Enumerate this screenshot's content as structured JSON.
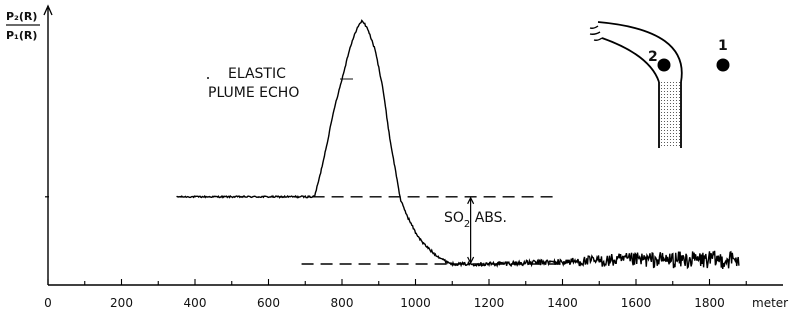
{
  "chart_data": {
    "type": "line",
    "xlabel": "meter",
    "ylabel": {
      "numerator": "P₂(R)",
      "denominator": "P₁(R)"
    },
    "xlim": [
      0,
      2000
    ],
    "x_ticks": [
      "0",
      "200",
      "400",
      "600",
      "800",
      "1000",
      "1200",
      "1400",
      "1600",
      "1800"
    ],
    "ylim": [
      0,
      1.3
    ],
    "grid": false,
    "legend": "none",
    "annotations": {
      "plume_echo": [
        "ELASTIC",
        "PLUME ECHO"
      ],
      "so2_label": "SO",
      "so2_subscript": "2",
      "so2_suffix": " ABS."
    },
    "inset": {
      "marker_1": "1",
      "marker_2": "2"
    },
    "reference_levels": [
      {
        "y": 0.42,
        "x_range": [
          720,
          1390
        ]
      },
      {
        "y": 0.1,
        "x_range": [
          690,
          1400
        ]
      }
    ],
    "series": [
      {
        "points": [
          [
            350,
            0.42
          ],
          [
            500,
            0.42
          ],
          [
            600,
            0.42
          ],
          [
            700,
            0.42
          ],
          [
            725,
            0.42
          ],
          [
            740,
            0.52
          ],
          [
            760,
            0.68
          ],
          [
            780,
            0.85
          ],
          [
            800,
            0.98
          ],
          [
            820,
            1.12
          ],
          [
            840,
            1.22
          ],
          [
            855,
            1.26
          ],
          [
            870,
            1.22
          ],
          [
            890,
            1.12
          ],
          [
            910,
            0.95
          ],
          [
            930,
            0.7
          ],
          [
            950,
            0.5
          ],
          [
            960,
            0.4
          ],
          [
            980,
            0.32
          ],
          [
            1000,
            0.25
          ],
          [
            1020,
            0.2
          ],
          [
            1050,
            0.15
          ],
          [
            1080,
            0.115
          ],
          [
            1100,
            0.1
          ],
          [
            1200,
            0.1
          ],
          [
            1300,
            0.105
          ],
          [
            1400,
            0.11
          ],
          [
            1500,
            0.115
          ],
          [
            1600,
            0.12
          ],
          [
            1700,
            0.12
          ],
          [
            1800,
            0.12
          ],
          [
            1880,
            0.12
          ]
        ],
        "noise": [
          [
            350,
            0.003
          ],
          [
            1100,
            0.006
          ],
          [
            1200,
            0.01
          ],
          [
            1400,
            0.015
          ],
          [
            1500,
            0.03
          ],
          [
            1700,
            0.04
          ],
          [
            1880,
            0.045
          ]
        ]
      }
    ]
  }
}
